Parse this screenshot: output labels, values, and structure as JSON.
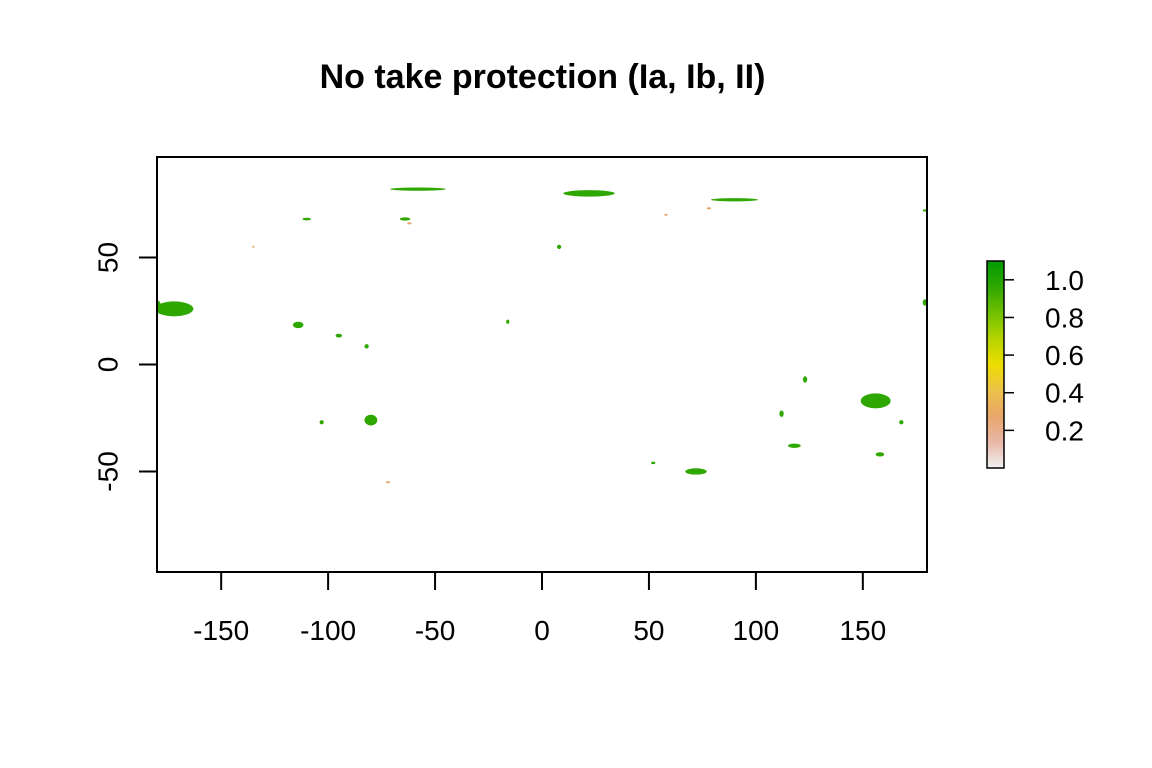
{
  "title": "No take protection (Ia, Ib, II)",
  "map": {
    "x_range": [
      -180,
      180
    ],
    "y_range": [
      -97,
      97
    ],
    "x_ticks": [
      -150,
      -100,
      -50,
      0,
      50,
      100,
      150
    ],
    "x_tick_labels": [
      "-150",
      "-100",
      "-50",
      "0",
      "50",
      "100",
      "150"
    ],
    "y_ticks": [
      -50,
      0,
      50
    ],
    "y_tick_labels": [
      "-50",
      "0",
      "50"
    ],
    "background_color": "#ffffff",
    "protected_color": "#1a9e10",
    "low_value_color": "#e8a27a"
  },
  "legend": {
    "value_range": [
      0,
      1.1
    ],
    "ticks": [
      0.2,
      0.4,
      0.6,
      0.8,
      1.0
    ],
    "tick_labels": [
      "0.2",
      "0.4",
      "0.6",
      "0.8",
      "1.0"
    ],
    "gradient_colors": [
      "#f2f2f2",
      "#e8b7a8",
      "#e8a66a",
      "#ecc24a",
      "#eedd00",
      "#b5d400",
      "#70c000",
      "#2ea700",
      "#009b00"
    ]
  },
  "regions": [
    {
      "id": "hawaii-nw-chain",
      "lon": -172,
      "lat": 26,
      "w": 18,
      "h": 7,
      "value": 1.0
    },
    {
      "id": "hawaii-west-edge",
      "lon": -180,
      "lat": 28.5,
      "w": 3,
      "h": 3,
      "value": 1.0
    },
    {
      "id": "mexico-revillagigedo",
      "lon": -114,
      "lat": 18.5,
      "w": 5,
      "h": 3,
      "value": 0.95
    },
    {
      "id": "clipperton-area",
      "lon": -95,
      "lat": 13.5,
      "w": 3,
      "h": 1.8,
      "value": 0.95
    },
    {
      "id": "caribbean-patch",
      "lon": -82,
      "lat": 8.5,
      "w": 2,
      "h": 2,
      "value": 0.9
    },
    {
      "id": "galapagos-south",
      "lon": -103,
      "lat": -27,
      "w": 2,
      "h": 2,
      "value": 0.9
    },
    {
      "id": "juan-fernandez",
      "lon": -80,
      "lat": -26,
      "w": 6,
      "h": 5,
      "value": 1.0
    },
    {
      "id": "canada-arctic-1",
      "lon": -110,
      "lat": 68,
      "w": 4,
      "h": 1.2,
      "value": 0.95
    },
    {
      "id": "canada-arctic-2",
      "lon": -64,
      "lat": 68,
      "w": 5,
      "h": 1.5,
      "value": 0.95
    },
    {
      "id": "greenland-north",
      "lon": -58,
      "lat": 82,
      "w": 26,
      "h": 1.5,
      "value": 1.0
    },
    {
      "id": "svalbard",
      "lon": 22,
      "lat": 80,
      "w": 24,
      "h": 3,
      "value": 1.0
    },
    {
      "id": "russia-arctic",
      "lon": 90,
      "lat": 77,
      "w": 22,
      "h": 1.5,
      "value": 0.95
    },
    {
      "id": "north-sea",
      "lon": 8,
      "lat": 55,
      "w": 2,
      "h": 2,
      "value": 0.9
    },
    {
      "id": "west-africa",
      "lon": -16,
      "lat": 20,
      "w": 1.5,
      "h": 2,
      "value": 0.9
    },
    {
      "id": "kerguelen",
      "lon": 72,
      "lat": -50,
      "w": 10,
      "h": 3,
      "value": 1.0
    },
    {
      "id": "crozet",
      "lon": 52,
      "lat": -46,
      "w": 2,
      "h": 1.2,
      "value": 0.95
    },
    {
      "id": "coral-sea",
      "lon": 156,
      "lat": -17,
      "w": 14,
      "h": 7,
      "value": 1.0
    },
    {
      "id": "tasman-sea",
      "lon": 158,
      "lat": -42,
      "w": 4,
      "h": 2,
      "value": 0.95
    },
    {
      "id": "great-australian-bight",
      "lon": 118,
      "lat": -38,
      "w": 6,
      "h": 2,
      "value": 0.95
    },
    {
      "id": "western-australia",
      "lon": 112,
      "lat": -23,
      "w": 2,
      "h": 3,
      "value": 0.9
    },
    {
      "id": "northwest-australia",
      "lon": 123,
      "lat": -7,
      "w": 2,
      "h": 3,
      "value": 0.9
    },
    {
      "id": "new-caledonia",
      "lon": 168,
      "lat": -27,
      "w": 2,
      "h": 2,
      "value": 0.9
    },
    {
      "id": "dateline-east",
      "lon": 179,
      "lat": 29,
      "w": 2,
      "h": 3,
      "value": 1.0
    },
    {
      "id": "dateline-arctic",
      "lon": 179,
      "lat": 72,
      "w": 2,
      "h": 1,
      "value": 0.9
    },
    {
      "id": "patagonia-low",
      "lon": -72,
      "lat": -55,
      "w": 2,
      "h": 1,
      "value": 0.3
    },
    {
      "id": "alaska-low",
      "lon": -135,
      "lat": 55,
      "w": 1,
      "h": 1,
      "value": 0.3
    },
    {
      "id": "siberia-low",
      "lon": 78,
      "lat": 73,
      "w": 2,
      "h": 1,
      "value": 0.3
    },
    {
      "id": "baffin-low",
      "lon": -62,
      "lat": 66,
      "w": 2,
      "h": 1,
      "value": 0.3
    },
    {
      "id": "scandinavia-low",
      "lon": 58,
      "lat": 70,
      "w": 1.5,
      "h": 1,
      "value": 0.3
    }
  ]
}
